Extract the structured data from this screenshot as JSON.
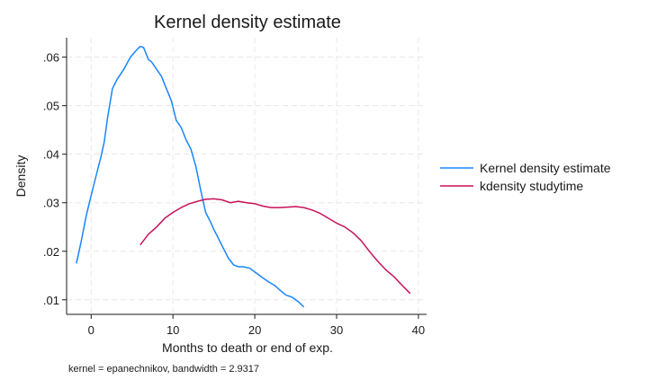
{
  "chart_data": {
    "type": "line",
    "title": "Kernel density estimate",
    "xlabel": "Months to death or end of exp.",
    "ylabel": "Density",
    "note": "kernel = epanechnikov, bandwidth = 2.9317",
    "xlim": [
      -3,
      41
    ],
    "ylim": [
      0.007,
      0.064
    ],
    "x_ticks": [
      0,
      10,
      20,
      30,
      40
    ],
    "x_tick_labels": [
      "0",
      "10",
      "20",
      "30",
      "40"
    ],
    "y_ticks": [
      0.01,
      0.02,
      0.03,
      0.04,
      0.05,
      0.06
    ],
    "y_tick_labels": [
      ".01",
      ".02",
      ".03",
      ".04",
      ".05",
      ".06"
    ],
    "grid": true,
    "legend_position": "right",
    "series": [
      {
        "name": "Kernel density estimate",
        "color": "#1a85ff",
        "x": [
          -1.8,
          -1.2,
          -0.6,
          0,
          0.6,
          1.2,
          1.6,
          2,
          2.6,
          3.2,
          4,
          4.8,
          5.4,
          6,
          6.4,
          7,
          7.4,
          8,
          8.6,
          9.2,
          9.8,
          10.4,
          11,
          11.6,
          12.2,
          12.8,
          13.4,
          14,
          14.6,
          15,
          15.6,
          16.2,
          16.8,
          17.4,
          18,
          18.6,
          19.4,
          20.2,
          21,
          21.6,
          22.4,
          23.2,
          23.8,
          24.6,
          25.4,
          26
        ],
        "y": [
          0.0175,
          0.0222,
          0.0273,
          0.0315,
          0.0355,
          0.0395,
          0.0425,
          0.0475,
          0.0535,
          0.0555,
          0.0575,
          0.06,
          0.0612,
          0.0622,
          0.062,
          0.0595,
          0.059,
          0.0575,
          0.056,
          0.0535,
          0.051,
          0.047,
          0.0455,
          0.043,
          0.041,
          0.0375,
          0.0325,
          0.028,
          0.026,
          0.0245,
          0.0225,
          0.0205,
          0.0185,
          0.0172,
          0.0168,
          0.0168,
          0.0165,
          0.0155,
          0.0145,
          0.0138,
          0.013,
          0.0118,
          0.011,
          0.0105,
          0.0095,
          0.0085
        ]
      },
      {
        "name": "kdensity studytime",
        "color": "#c8105a",
        "x": [
          6,
          7,
          8,
          9,
          10,
          11,
          12,
          13,
          14,
          15,
          16,
          17,
          18,
          19,
          20,
          21,
          22,
          23,
          24,
          25,
          26,
          27,
          28,
          29,
          30,
          31,
          32,
          33,
          34,
          35,
          36,
          37,
          38,
          39
        ],
        "y": [
          0.0213,
          0.0235,
          0.025,
          0.0268,
          0.028,
          0.029,
          0.0298,
          0.0303,
          0.0307,
          0.0308,
          0.0306,
          0.03,
          0.0303,
          0.03,
          0.0298,
          0.0293,
          0.029,
          0.029,
          0.0291,
          0.0292,
          0.029,
          0.0285,
          0.0278,
          0.0268,
          0.0258,
          0.025,
          0.0238,
          0.0222,
          0.02,
          0.018,
          0.0162,
          0.0148,
          0.013,
          0.0113
        ]
      }
    ]
  }
}
